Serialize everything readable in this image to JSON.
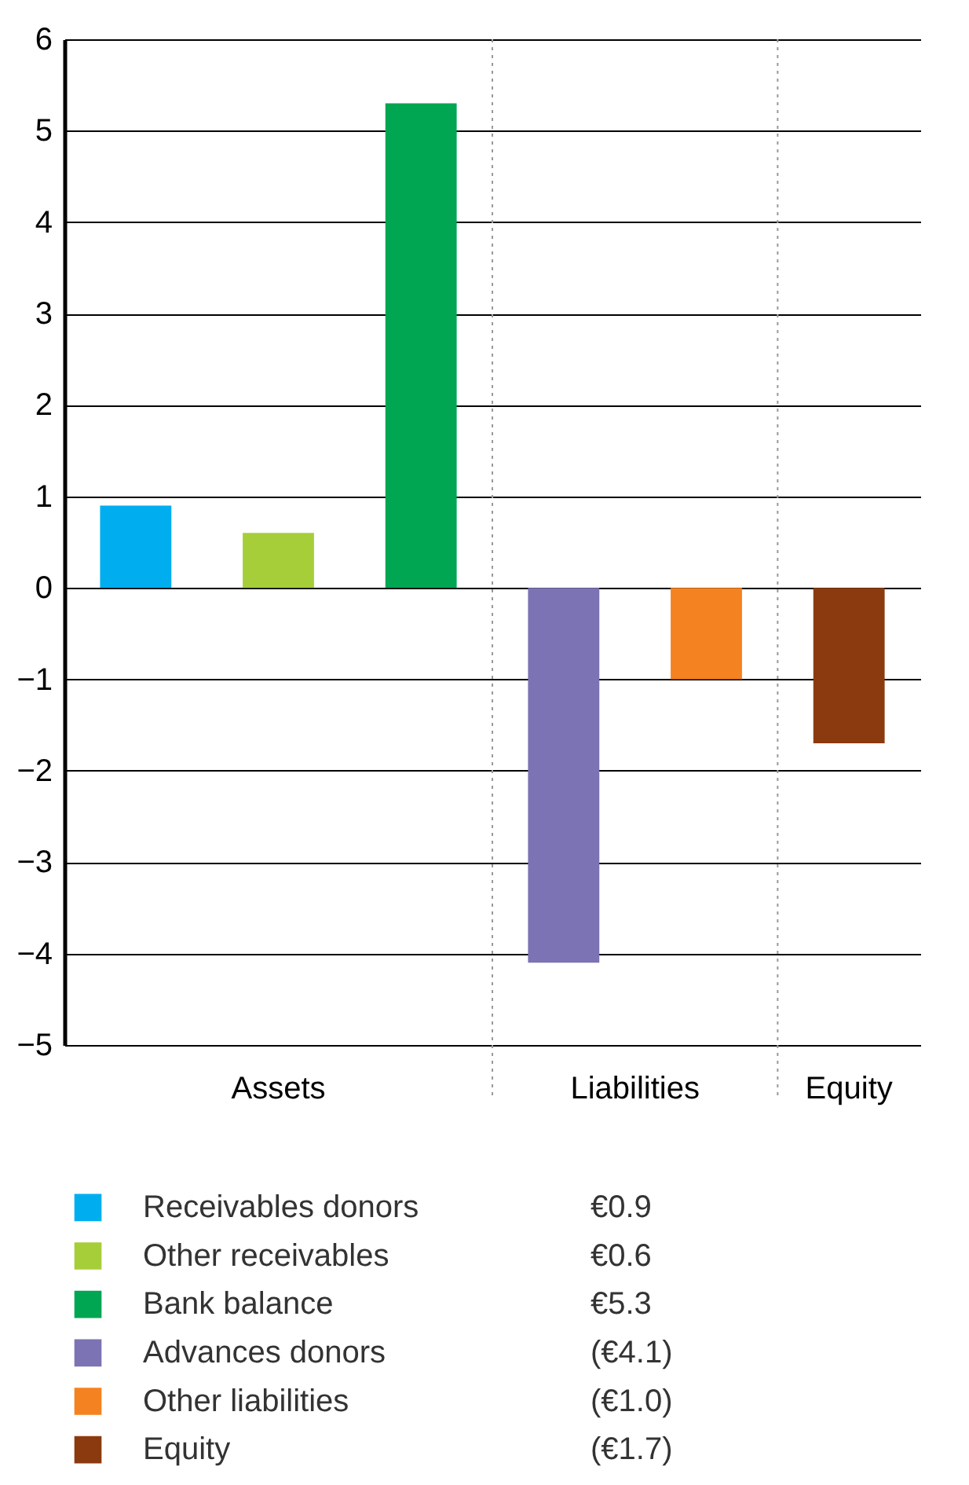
{
  "chart_data": {
    "type": "bar",
    "categories": [
      null,
      null,
      null,
      null,
      null,
      null
    ],
    "ylim": [
      -5,
      6
    ],
    "yticks": [
      -5,
      -4,
      -3,
      -2,
      -1,
      0,
      1,
      2,
      3,
      4,
      5,
      6
    ],
    "grid": "y",
    "legend": "bottom",
    "annotations": [
      "Assets",
      "Liabilities",
      "Equity",
      "€0.9",
      "€0.6",
      "€5.3",
      "(€4.1)",
      "(€1.0)",
      "(€1.7)"
    ],
    "series": [
      {
        "name": "Receivables donors",
        "color": "#00aeef",
        "values": [
          0.9,
          null,
          null,
          null,
          null,
          null
        ]
      },
      {
        "name": "Other receivables",
        "color": "#a6ce39",
        "values": [
          null,
          0.6,
          null,
          null,
          null,
          null
        ]
      },
      {
        "name": "Bank balance",
        "color": "#00a651",
        "values": [
          null,
          null,
          5.3,
          null,
          null,
          null
        ]
      },
      {
        "name": "Advances donors",
        "color": "#7b73b4",
        "values": [
          null,
          null,
          null,
          -4.1,
          null,
          null
        ]
      },
      {
        "name": "Other liabilities",
        "color": "#f58220",
        "values": [
          null,
          null,
          null,
          null,
          -1.0,
          null
        ]
      },
      {
        "name": "Equity",
        "color": "#8b3a0f",
        "values": [
          null,
          null,
          null,
          null,
          null,
          -1.7
        ]
      }
    ]
  }
}
